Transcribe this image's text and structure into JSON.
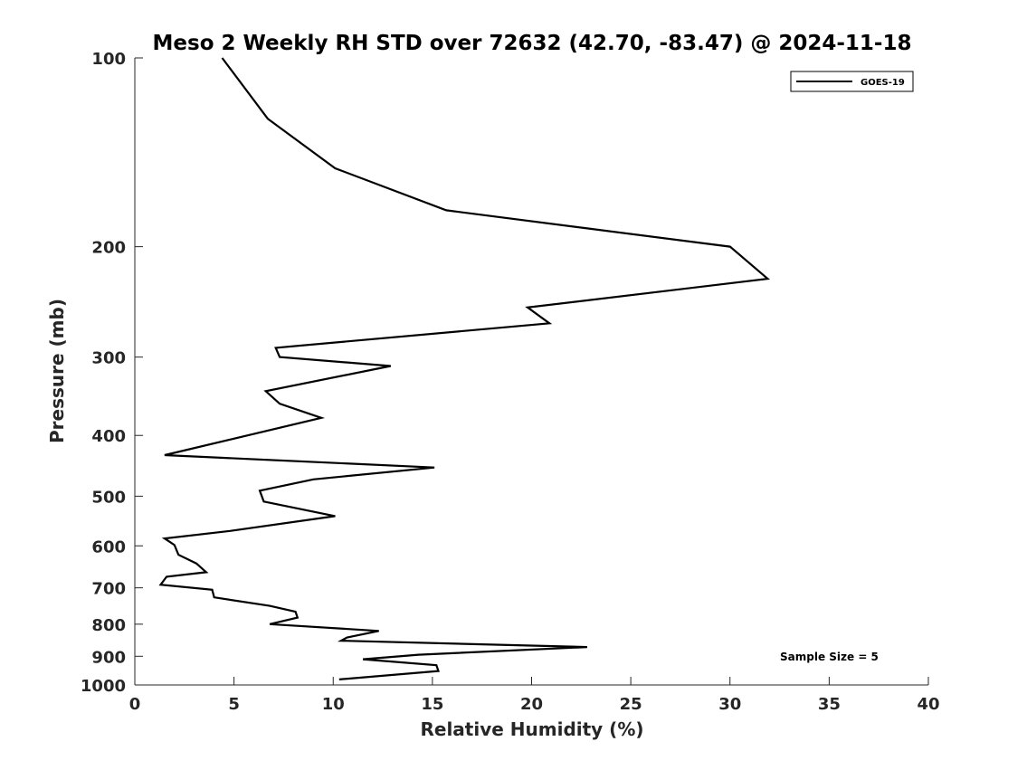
{
  "chart_data": {
    "type": "line",
    "title": "Meso 2 Weekly RH STD over 72632 (42.70, -83.47) @ 2024-11-18",
    "xlabel": "Relative Humidity (%)",
    "ylabel": "Pressure (mb)",
    "xlim": [
      0,
      40
    ],
    "ylim": [
      100,
      1000
    ],
    "y_scale": "log",
    "y_reversed": true,
    "xticks": [
      0,
      5,
      10,
      15,
      20,
      25,
      30,
      35,
      40
    ],
    "yticks": [
      100,
      200,
      300,
      400,
      500,
      600,
      700,
      800,
      900,
      1000
    ],
    "grid": false,
    "legend_position": "top-right",
    "annotation": "Sample Size = 5",
    "series": [
      {
        "name": "GOES-19",
        "color": "#000000",
        "points": [
          [
            4.4,
            100
          ],
          [
            6.7,
            125
          ],
          [
            10.1,
            150
          ],
          [
            15.7,
            175
          ],
          [
            22.8,
            187
          ],
          [
            30.0,
            200
          ],
          [
            31.9,
            225
          ],
          [
            19.8,
            250
          ],
          [
            20.9,
            265
          ],
          [
            7.1,
            290
          ],
          [
            7.3,
            300
          ],
          [
            12.9,
            310
          ],
          [
            6.6,
            340
          ],
          [
            7.3,
            356
          ],
          [
            9.4,
            375
          ],
          [
            1.5,
            430
          ],
          [
            15.1,
            450
          ],
          [
            9.0,
            470
          ],
          [
            6.3,
            490
          ],
          [
            6.5,
            510
          ],
          [
            10.1,
            538
          ],
          [
            4.8,
            568
          ],
          [
            1.5,
            584
          ],
          [
            2.0,
            598
          ],
          [
            2.2,
            620
          ],
          [
            3.1,
            640
          ],
          [
            3.6,
            661
          ],
          [
            1.6,
            672
          ],
          [
            1.3,
            692
          ],
          [
            3.9,
            705
          ],
          [
            4.0,
            725
          ],
          [
            6.8,
            748
          ],
          [
            8.1,
            764
          ],
          [
            8.2,
            781
          ],
          [
            6.8,
            800
          ],
          [
            12.3,
            820
          ],
          [
            10.7,
            840
          ],
          [
            10.4,
            850
          ],
          [
            22.8,
            870
          ],
          [
            14.3,
            895
          ],
          [
            11.5,
            910
          ],
          [
            15.2,
            930
          ],
          [
            15.3,
            950
          ],
          [
            10.3,
            980
          ]
        ]
      }
    ]
  }
}
